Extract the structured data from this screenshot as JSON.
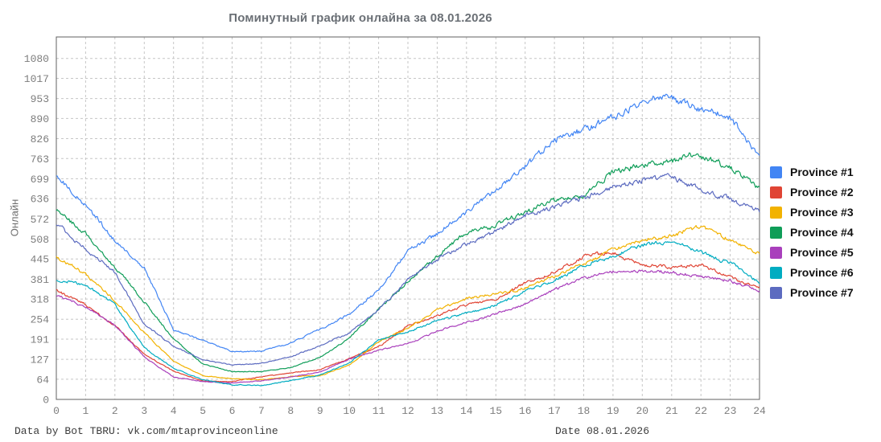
{
  "title": "Поминутный график онлайна за 08.01.2026",
  "footer": {
    "left": "Data by Bot TBRU: vk.com/mtaprovinceonline",
    "right": "Date 08.01.2026"
  },
  "chart_data": {
    "type": "line",
    "title": "Поминутный график онлайна за 08.01.2026",
    "xlabel": "",
    "ylabel": "Онлайн",
    "xlim": [
      0,
      24
    ],
    "ylim": [
      0,
      1148
    ],
    "grid": true,
    "legend_position": "right",
    "x_ticks": [
      0,
      1,
      2,
      3,
      4,
      5,
      6,
      7,
      8,
      9,
      10,
      11,
      12,
      13,
      14,
      15,
      16,
      17,
      18,
      19,
      20,
      21,
      22,
      23,
      24
    ],
    "y_ticks": [
      0,
      64,
      127,
      191,
      254,
      318,
      381,
      445,
      508,
      572,
      636,
      699,
      763,
      826,
      890,
      953,
      1017,
      1080
    ],
    "x_unit": "hour of day",
    "x": [
      0,
      1,
      2,
      3,
      4,
      5,
      6,
      7,
      8,
      9,
      10,
      11,
      12,
      13,
      14,
      15,
      16,
      17,
      18,
      19,
      20,
      21,
      22,
      23,
      24
    ],
    "series": [
      {
        "name": "Province #1",
        "color": "#4285F4",
        "values": [
          713,
          610,
          505,
          415,
          218,
          185,
          150,
          152,
          180,
          222,
          270,
          350,
          473,
          520,
          590,
          655,
          730,
          815,
          840,
          886,
          930,
          950,
          903,
          877,
          752
        ]
      },
      {
        "name": "Province #2",
        "color": "#E04434",
        "values": [
          345,
          300,
          235,
          146,
          90,
          60,
          58,
          73,
          84,
          94,
          130,
          167,
          235,
          265,
          299,
          316,
          367,
          401,
          450,
          465,
          426,
          422,
          430,
          392,
          360
        ]
      },
      {
        "name": "Province #3",
        "color": "#F2B200",
        "values": [
          448,
          390,
          310,
          210,
          120,
          75,
          65,
          62,
          71,
          73,
          107,
          180,
          222,
          280,
          320,
          337,
          354,
          390,
          430,
          477,
          507,
          520,
          548,
          507,
          460
        ]
      },
      {
        "name": "Province #4",
        "color": "#0F9D58",
        "values": [
          601,
          528,
          420,
          310,
          190,
          110,
          86,
          85,
          99,
          133,
          190,
          282,
          371,
          452,
          528,
          550,
          592,
          630,
          648,
          716,
          733,
          758,
          765,
          728,
          668
        ]
      },
      {
        "name": "Province #5",
        "color": "#A93FBC",
        "values": [
          329,
          295,
          235,
          135,
          70,
          56,
          52,
          58,
          70,
          85,
          125,
          154,
          175,
          214,
          243,
          269,
          299,
          348,
          384,
          401,
          405,
          400,
          388,
          375,
          348
        ]
      },
      {
        "name": "Province #6",
        "color": "#00ACC1",
        "values": [
          380,
          360,
          300,
          165,
          100,
          65,
          48,
          45,
          60,
          77,
          116,
          188,
          214,
          252,
          277,
          299,
          345,
          380,
          425,
          452,
          490,
          499,
          465,
          439,
          373
        ]
      },
      {
        "name": "Province #7",
        "color": "#5C6BC0",
        "values": [
          558,
          477,
          400,
          240,
          172,
          130,
          112,
          116,
          137,
          171,
          209,
          290,
          380,
          440,
          490,
          537,
          590,
          610,
          635,
          669,
          682,
          695,
          656,
          631,
          590
        ]
      }
    ]
  }
}
